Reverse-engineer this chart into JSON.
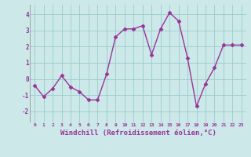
{
  "x": [
    0,
    1,
    2,
    3,
    4,
    5,
    6,
    7,
    8,
    9,
    10,
    11,
    12,
    13,
    14,
    15,
    16,
    17,
    18,
    19,
    20,
    21,
    22,
    23
  ],
  "y": [
    -0.4,
    -1.1,
    -0.6,
    0.2,
    -0.5,
    -0.8,
    -1.3,
    -1.3,
    0.3,
    2.6,
    3.1,
    3.1,
    3.3,
    1.5,
    3.1,
    4.1,
    3.6,
    1.3,
    -1.7,
    -0.3,
    0.7,
    2.1,
    2.1,
    2.1
  ],
  "line_color": "#993399",
  "marker": "D",
  "marker_size": 2.5,
  "bg_color": "#cce8e8",
  "grid_color": "#99cccc",
  "xlabel": "Windchill (Refroidissement éolien,°C)",
  "xlabel_fontsize": 6.5,
  "ylabel_ticks": [
    -2,
    -1,
    0,
    1,
    2,
    3,
    4
  ],
  "xlim": [
    -0.5,
    23.5
  ],
  "ylim": [
    -2.7,
    4.6
  ],
  "xticks": [
    0,
    1,
    2,
    3,
    4,
    5,
    6,
    7,
    8,
    9,
    10,
    11,
    12,
    13,
    14,
    15,
    16,
    17,
    18,
    19,
    20,
    21,
    22,
    23
  ],
  "tick_color": "#993399",
  "label_color": "#993399"
}
